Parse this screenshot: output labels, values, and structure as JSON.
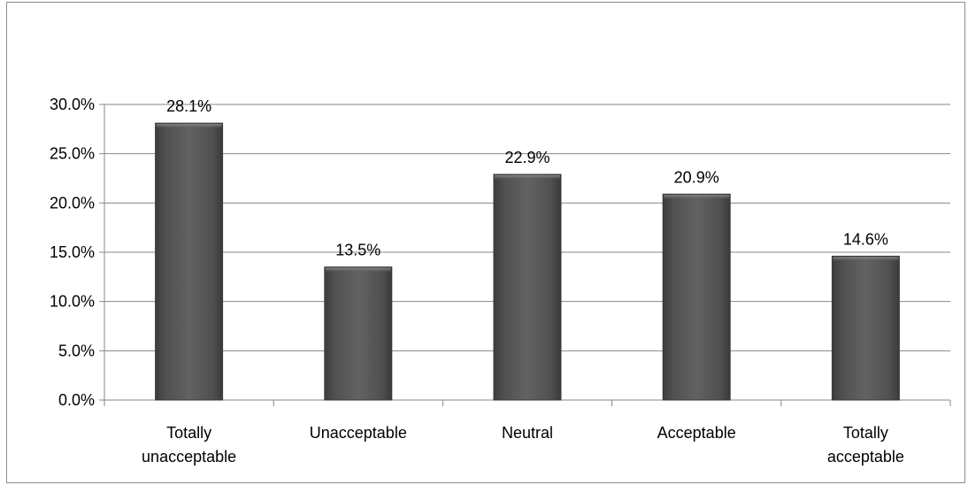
{
  "chart_data": {
    "type": "bar",
    "title": "",
    "xlabel": "",
    "ylabel": "",
    "categories": [
      [
        "Totally",
        "unacceptable"
      ],
      [
        "Unacceptable"
      ],
      [
        "Neutral"
      ],
      [
        "Acceptable"
      ],
      [
        "Totally",
        "acceptable"
      ]
    ],
    "values": [
      28.1,
      13.5,
      22.9,
      20.9,
      14.6
    ],
    "data_labels": [
      "28.1%",
      "13.5%",
      "22.9%",
      "20.9%",
      "14.6%"
    ],
    "ylim": [
      0,
      30
    ],
    "yticks": [
      0,
      5,
      10,
      15,
      20,
      25,
      30
    ],
    "ytick_labels": [
      "0.0%",
      "5.0%",
      "10.0%",
      "15.0%",
      "20.0%",
      "25.0%",
      "30.0%"
    ],
    "grid": true,
    "legend": "none",
    "bar_color": "#5a5a5a"
  }
}
